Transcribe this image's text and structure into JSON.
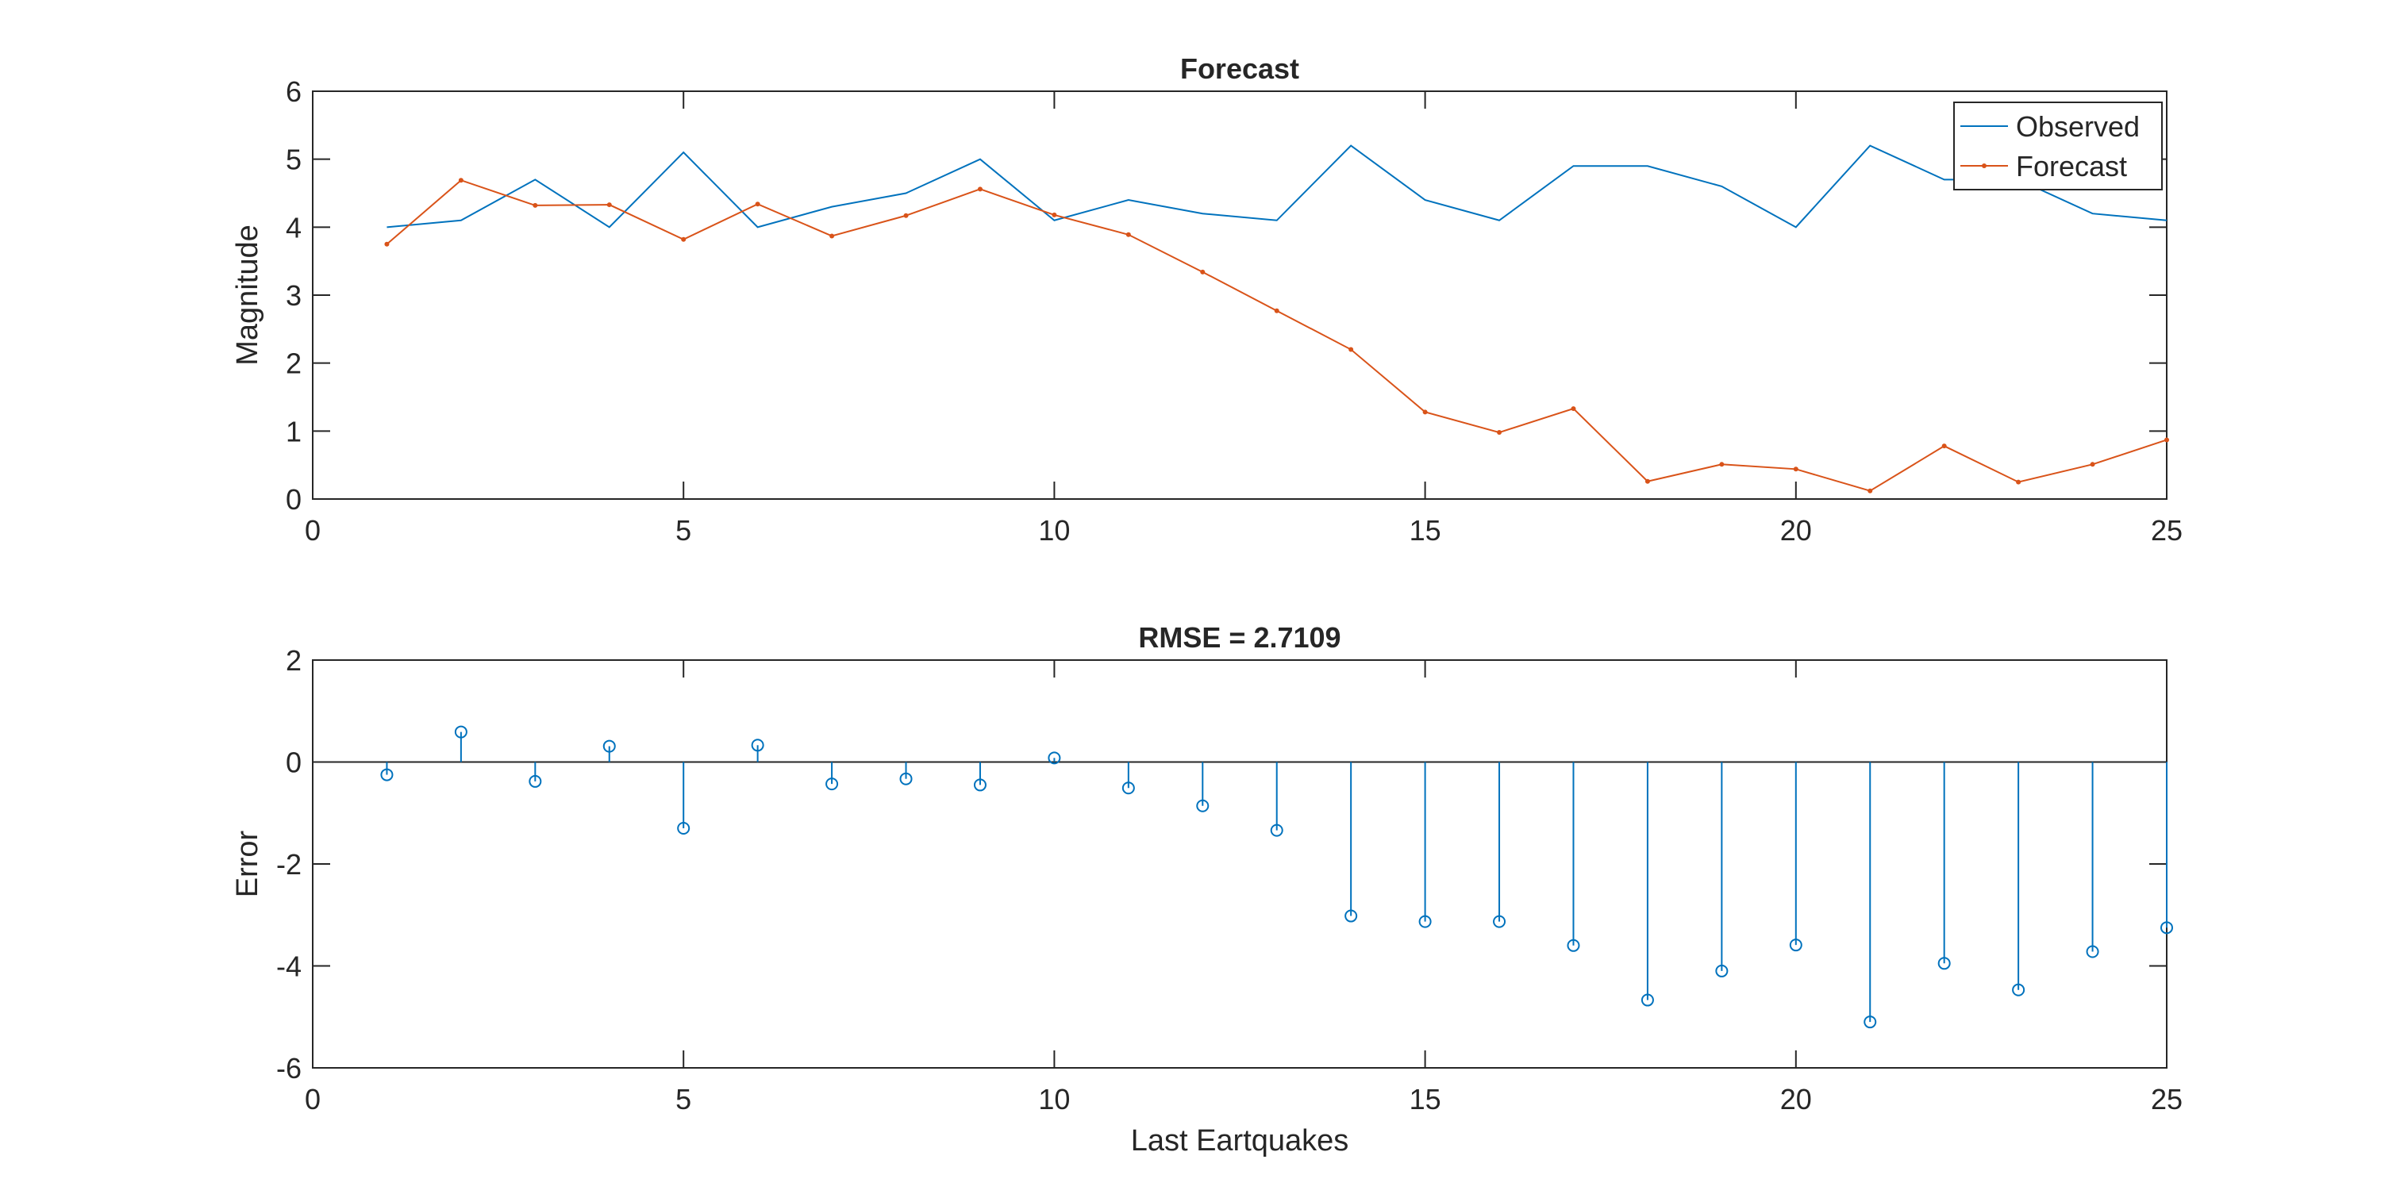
{
  "colors": {
    "observed": "#0072BD",
    "forecast": "#D95319",
    "error": "#0072BD",
    "axis": "#262626",
    "grid_baseline": "#262626"
  },
  "chart_data": [
    {
      "type": "line",
      "title": "Forecast",
      "xlabel": "",
      "ylabel": "Magnitude",
      "xlim": [
        0,
        25
      ],
      "ylim": [
        0,
        6
      ],
      "xticks": [
        0,
        5,
        10,
        15,
        20,
        25
      ],
      "yticks": [
        0,
        1,
        2,
        3,
        4,
        5,
        6
      ],
      "grid": false,
      "legend": {
        "placement": "top-right",
        "entries": [
          "Observed",
          "Forecast"
        ]
      },
      "x": [
        1,
        2,
        3,
        4,
        5,
        6,
        7,
        8,
        9,
        10,
        11,
        12,
        13,
        14,
        15,
        16,
        17,
        18,
        19,
        20,
        21,
        22,
        23,
        24,
        25
      ],
      "series": [
        {
          "name": "Observed",
          "marker": "none",
          "values": [
            4.0,
            4.1,
            4.7,
            4.0,
            5.1,
            4.0,
            4.3,
            4.5,
            5.0,
            4.1,
            4.4,
            4.2,
            4.1,
            5.2,
            4.4,
            4.1,
            4.9,
            4.9,
            4.6,
            4.0,
            5.2,
            4.7,
            4.7,
            4.2,
            4.1
          ]
        },
        {
          "name": "Forecast",
          "marker": "dot",
          "values": [
            3.75,
            4.69,
            4.32,
            4.33,
            3.82,
            4.34,
            3.87,
            4.17,
            4.56,
            4.18,
            3.89,
            3.34,
            2.77,
            2.2,
            1.28,
            0.98,
            1.33,
            0.26,
            0.51,
            0.44,
            0.12,
            0.78,
            0.25,
            0.51,
            0.87
          ]
        }
      ]
    },
    {
      "type": "stem",
      "title": "RMSE = 2.7109",
      "xlabel": "Last Eartquakes",
      "ylabel": "Error",
      "xlim": [
        0,
        25
      ],
      "ylim": [
        -6,
        2
      ],
      "xticks": [
        0,
        5,
        10,
        15,
        20,
        25
      ],
      "yticks": [
        -6,
        -4,
        -2,
        0,
        2
      ],
      "grid": false,
      "baseline": 0,
      "x": [
        1,
        2,
        3,
        4,
        5,
        6,
        7,
        8,
        9,
        10,
        11,
        12,
        13,
        14,
        15,
        16,
        17,
        18,
        19,
        20,
        21,
        22,
        23,
        24,
        25
      ],
      "series": [
        {
          "name": "Error",
          "marker": "circle",
          "values": [
            -0.25,
            0.59,
            -0.38,
            0.31,
            -1.3,
            0.33,
            -0.43,
            -0.33,
            -0.45,
            0.08,
            -0.51,
            -0.86,
            -1.34,
            -3.02,
            -3.13,
            -3.13,
            -3.6,
            -4.67,
            -4.1,
            -3.59,
            -5.1,
            -3.95,
            -4.47,
            -3.72,
            -3.25
          ]
        }
      ]
    }
  ]
}
